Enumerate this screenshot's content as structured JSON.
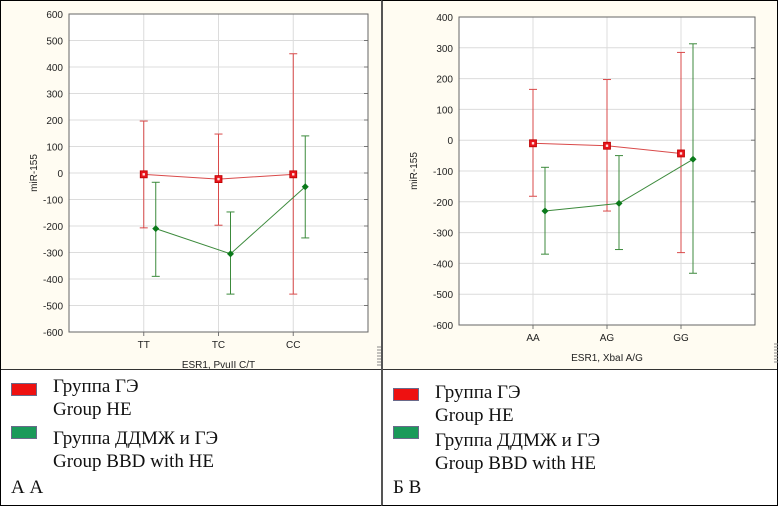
{
  "colors": {
    "red_series": "#e8141b",
    "green_series": "#0a7a1a",
    "red_line": "#d94a4a",
    "green_line": "#3c8a3c",
    "grid": "#dcdcdc",
    "legend_red": "#ee1111",
    "legend_green": "#1a9a5a"
  },
  "chart_data": [
    {
      "type": "line",
      "panel": "A",
      "title": "",
      "xlabel": "ESR1, PvuII C/T",
      "ylabel": "miR-155",
      "ylim": [
        -600,
        600
      ],
      "yticks": [
        "600",
        "500",
        "400",
        "300",
        "200",
        "100",
        "0",
        "-100",
        "-200",
        "-300",
        "-400",
        "-500",
        "-600"
      ],
      "categories": [
        "TT",
        "TC",
        "CC"
      ],
      "grid": true,
      "series": [
        {
          "name": "Группа ГЭ / Group HE",
          "marker": "square",
          "values": [
            -5,
            -23,
            -5
          ],
          "upper": [
            196,
            147,
            450
          ],
          "lower": [
            -207,
            -197,
            -457
          ]
        },
        {
          "name": "Группа ДДМЖ и ГЭ / Group BBD with HE",
          "marker": "diamond",
          "values": [
            -210,
            -305,
            -52
          ],
          "upper": [
            -35,
            -147,
            140
          ],
          "lower": [
            -390,
            -457,
            -245
          ]
        }
      ]
    },
    {
      "type": "line",
      "panel": "B",
      "title": "",
      "xlabel": "ESR1, XbaI A/G",
      "ylabel": "miR-155",
      "ylim": [
        -600,
        400
      ],
      "yticks": [
        "400",
        "300",
        "200",
        "100",
        "0",
        "-100",
        "-200",
        "-300",
        "-400",
        "-500",
        "-600"
      ],
      "categories": [
        "AA",
        "AG",
        "GG"
      ],
      "grid": true,
      "series": [
        {
          "name": "Группа ГЭ / Group HE",
          "marker": "square",
          "values": [
            -10,
            -18,
            -43
          ],
          "upper": [
            165,
            197,
            285
          ],
          "lower": [
            -182,
            -230,
            -365
          ]
        },
        {
          "name": "Группа ДДМЖ и ГЭ / Group BBD with HE",
          "marker": "diamond",
          "values": [
            -230,
            -205,
            -62
          ],
          "upper": [
            -88,
            -50,
            313
          ],
          "lower": [
            -370,
            -355,
            -432
          ]
        }
      ]
    }
  ],
  "legend": {
    "items": [
      {
        "line1": "Группа ГЭ",
        "line2": "Group HE"
      },
      {
        "line1": "Группа ДДМЖ и ГЭ",
        "line2": "Group BBD with HE"
      }
    ]
  },
  "panels": {
    "a_label": "А A",
    "b_label": "Б B"
  }
}
